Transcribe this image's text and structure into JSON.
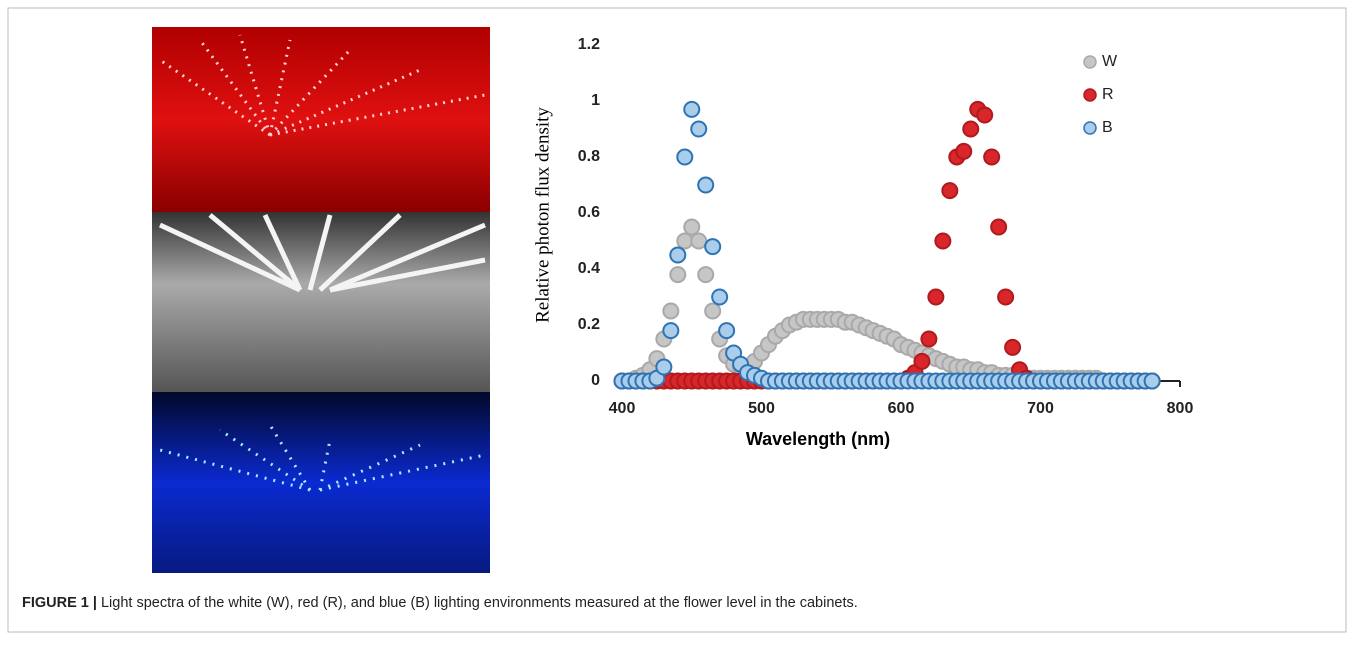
{
  "chart_data": {
    "type": "scatter",
    "xlabel": "Wavelength (nm)",
    "ylabel": "Relative photon flux density",
    "x": [
      400,
      405,
      410,
      415,
      420,
      425,
      430,
      435,
      440,
      445,
      450,
      455,
      460,
      465,
      470,
      475,
      480,
      485,
      490,
      495,
      500,
      505,
      510,
      515,
      520,
      525,
      530,
      535,
      540,
      545,
      550,
      555,
      560,
      565,
      570,
      575,
      580,
      585,
      590,
      595,
      600,
      605,
      610,
      615,
      620,
      625,
      630,
      635,
      640,
      645,
      650,
      655,
      660,
      665,
      670,
      675,
      680,
      685,
      690,
      695,
      700,
      705,
      710,
      715,
      720,
      725,
      730,
      735,
      740,
      745,
      750,
      755,
      760,
      765,
      770,
      775,
      780
    ],
    "series": [
      {
        "name": "W",
        "color": "#c6c6c6",
        "edge": "#a9a9a9",
        "values": [
          0,
          0,
          0.01,
          0.02,
          0.04,
          0.08,
          0.15,
          0.25,
          0.38,
          0.5,
          0.55,
          0.5,
          0.38,
          0.25,
          0.15,
          0.09,
          0.06,
          0.05,
          0.05,
          0.07,
          0.1,
          0.13,
          0.16,
          0.18,
          0.2,
          0.21,
          0.22,
          0.22,
          0.22,
          0.22,
          0.22,
          0.22,
          0.21,
          0.21,
          0.2,
          0.19,
          0.18,
          0.17,
          0.16,
          0.15,
          0.13,
          0.12,
          0.11,
          0.1,
          0.09,
          0.08,
          0.07,
          0.06,
          0.05,
          0.05,
          0.04,
          0.04,
          0.03,
          0.03,
          0.02,
          0.02,
          0.02,
          0.02,
          0.01,
          0.01,
          0.01,
          0.01,
          0.01,
          0.01,
          0.01,
          0.01,
          0.01,
          0.01,
          0.01,
          0,
          0,
          0,
          0,
          0,
          0,
          0,
          0
        ]
      },
      {
        "name": "R",
        "color": "#d8262b",
        "edge": "#b01a1f",
        "values": [
          0,
          0,
          0,
          0,
          0,
          0,
          0,
          0,
          0,
          0,
          0,
          0,
          0,
          0,
          0,
          0,
          0,
          0,
          0,
          0,
          0,
          0,
          0,
          0,
          0,
          0,
          0,
          0,
          0,
          0,
          0,
          0,
          0,
          0,
          0,
          0,
          0,
          0,
          0,
          0,
          0,
          0.01,
          0.03,
          0.07,
          0.15,
          0.3,
          0.5,
          0.68,
          0.8,
          0.82,
          0.9,
          0.97,
          0.95,
          0.8,
          0.55,
          0.3,
          0.12,
          0.04,
          0.01,
          0,
          0,
          0,
          0,
          0,
          0,
          0,
          0,
          0,
          0,
          0,
          0,
          0,
          0,
          0,
          0,
          0,
          0
        ]
      },
      {
        "name": "B",
        "color": "#a9cdea",
        "edge": "#2e74b5",
        "values": [
          0,
          0,
          0,
          0,
          0,
          0.01,
          0.05,
          0.18,
          0.45,
          0.8,
          0.97,
          0.9,
          0.7,
          0.48,
          0.3,
          0.18,
          0.1,
          0.06,
          0.03,
          0.02,
          0.01,
          0,
          0,
          0,
          0,
          0,
          0,
          0,
          0,
          0,
          0,
          0,
          0,
          0,
          0,
          0,
          0,
          0,
          0,
          0,
          0,
          0,
          0,
          0,
          0,
          0,
          0,
          0,
          0,
          0,
          0,
          0,
          0,
          0,
          0,
          0,
          0,
          0,
          0,
          0,
          0,
          0,
          0,
          0,
          0,
          0,
          0,
          0,
          0,
          0,
          0,
          0,
          0,
          0,
          0,
          0,
          0
        ]
      }
    ],
    "xlim": [
      400,
      800
    ],
    "xticks": [
      400,
      500,
      600,
      700,
      800
    ],
    "ylim": [
      0,
      1.2
    ],
    "yticks": [
      0,
      0.2,
      0.4,
      0.6,
      0.8,
      1,
      1.2
    ],
    "grid": false,
    "legend": "upper right"
  },
  "caption": {
    "label": "FIGURE 1 |",
    "text": " Light spectra of the white (W), red (R), and blue (B) lighting environments measured at the flower level in the cabinets."
  }
}
